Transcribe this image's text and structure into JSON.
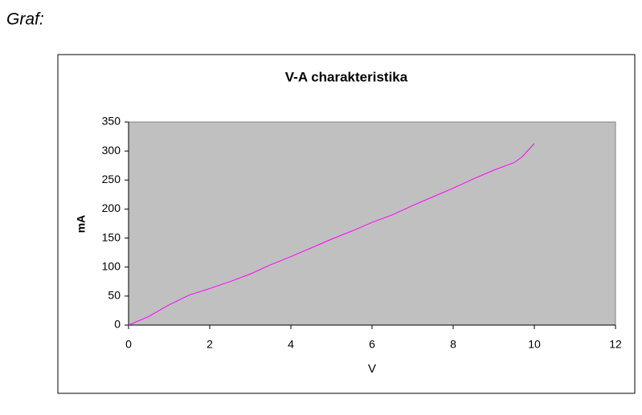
{
  "heading": "Graf:",
  "chart_data": {
    "type": "line",
    "title": "V-A charakteristika",
    "x_label": "V",
    "y_label": "mA",
    "x": [
      0,
      0.5,
      1,
      1.5,
      2,
      2.5,
      3,
      3.5,
      4,
      4.5,
      5,
      5.5,
      6,
      6.5,
      7,
      7.5,
      8,
      8.5,
      9,
      9.5,
      9.7,
      10
    ],
    "values": [
      0,
      15,
      35,
      52,
      63,
      75,
      88,
      104,
      118,
      133,
      148,
      162,
      177,
      190,
      206,
      221,
      236,
      252,
      267,
      280,
      290,
      313
    ],
    "color": "#ff00ff",
    "plot_background": "#c0c0c0",
    "xlim": [
      0,
      12
    ],
    "xticks": [
      0,
      2,
      4,
      6,
      8,
      10,
      12
    ],
    "ylim": [
      0,
      350
    ],
    "yticks": [
      0,
      50,
      100,
      150,
      200,
      250,
      300,
      350
    ],
    "grid": false
  }
}
